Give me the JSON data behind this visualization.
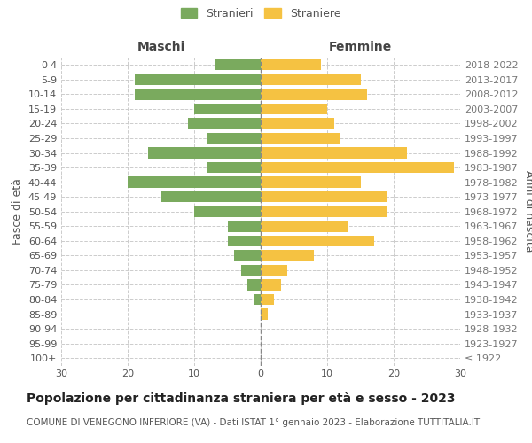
{
  "age_groups": [
    "100+",
    "95-99",
    "90-94",
    "85-89",
    "80-84",
    "75-79",
    "70-74",
    "65-69",
    "60-64",
    "55-59",
    "50-54",
    "45-49",
    "40-44",
    "35-39",
    "30-34",
    "25-29",
    "20-24",
    "15-19",
    "10-14",
    "5-9",
    "0-4"
  ],
  "birth_years": [
    "≤ 1922",
    "1923-1927",
    "1928-1932",
    "1933-1937",
    "1938-1942",
    "1943-1947",
    "1948-1952",
    "1953-1957",
    "1958-1962",
    "1963-1967",
    "1968-1972",
    "1973-1977",
    "1978-1982",
    "1983-1987",
    "1988-1992",
    "1993-1997",
    "1998-2002",
    "2003-2007",
    "2008-2012",
    "2013-2017",
    "2018-2022"
  ],
  "males": [
    0,
    0,
    0,
    0,
    1,
    2,
    3,
    4,
    5,
    5,
    10,
    15,
    20,
    8,
    17,
    8,
    11,
    10,
    19,
    19,
    7
  ],
  "females": [
    0,
    0,
    0,
    1,
    2,
    3,
    4,
    8,
    17,
    13,
    19,
    19,
    15,
    29,
    22,
    12,
    11,
    10,
    16,
    15,
    9
  ],
  "male_color": "#7aaa5e",
  "female_color": "#f5c242",
  "bar_height": 0.75,
  "xlim": 30,
  "title": "Popolazione per cittadinanza straniera per età e sesso - 2023",
  "subtitle": "COMUNE DI VENEGONO INFERIORE (VA) - Dati ISTAT 1° gennaio 2023 - Elaborazione TUTTITALIA.IT",
  "ylabel_left": "Fasce di età",
  "ylabel_right": "Anni di nascita",
  "legend_male": "Stranieri",
  "legend_female": "Straniere",
  "header_male": "Maschi",
  "header_female": "Femmine",
  "bg_color": "#ffffff",
  "grid_color": "#cccccc",
  "title_fontsize": 10,
  "subtitle_fontsize": 7.5,
  "tick_fontsize": 8,
  "label_fontsize": 9
}
